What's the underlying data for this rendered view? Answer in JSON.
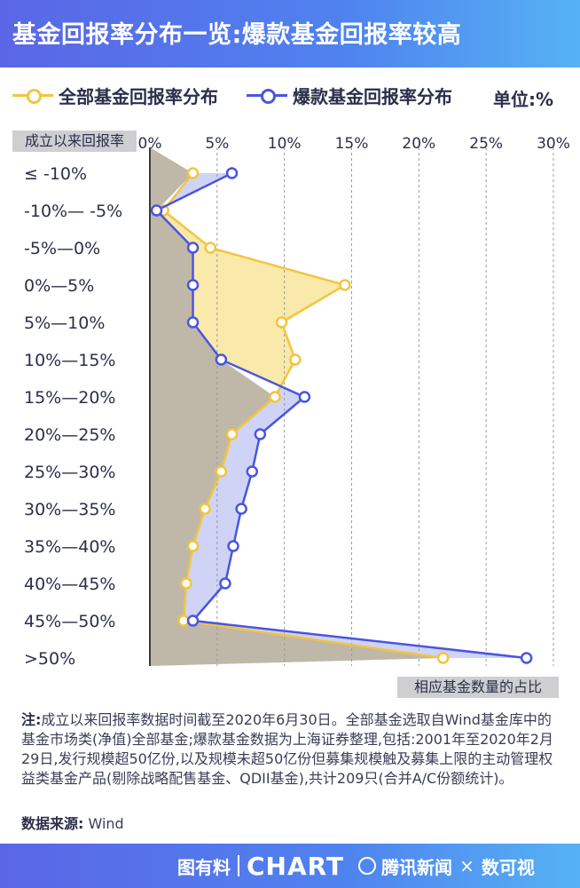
{
  "header": {
    "title": "基金回报率分布一览:爆款基金回报率较高"
  },
  "legend": {
    "all_funds": "全部基金回报率分布",
    "hot_funds": "爆款基金回报率分布",
    "unit": "单位:%"
  },
  "axes": {
    "y_title": "成立以来回报率",
    "x_title": "相应基金数量的占比"
  },
  "colors": {
    "all_funds_line": "#f2c53d",
    "all_funds_fill": "#f8e59b",
    "hot_funds_line": "#4a55e0",
    "hot_funds_fill": "#c7cbf5",
    "base_fill": "#bfb8a8",
    "header": "#5a66e6"
  },
  "chart_data": {
    "type": "line",
    "orientation": "horizontal",
    "categories": [
      "≤ -10%",
      "-10%— -5%",
      "-5%—0%",
      "0%—5%",
      "5%—10%",
      "10%—15%",
      "15%—20%",
      "20%—25%",
      "25%—30%",
      "30%—35%",
      "35%—40%",
      "40%—45%",
      "45%—50%",
      ">50%"
    ],
    "series": [
      {
        "name": "全部基金回报率分布",
        "values": [
          3.2,
          1.0,
          4.5,
          14.5,
          9.8,
          10.8,
          9.3,
          6.1,
          5.3,
          4.1,
          3.2,
          2.7,
          2.5,
          21.8
        ]
      },
      {
        "name": "爆款基金回报率分布",
        "values": [
          6.1,
          0.5,
          3.2,
          3.2,
          3.2,
          5.3,
          11.5,
          8.2,
          7.6,
          6.8,
          6.2,
          5.6,
          3.2,
          28.0
        ]
      }
    ],
    "x_ticks": [
      "0%",
      "5%",
      "10%",
      "15%",
      "20%",
      "25%",
      "30%"
    ],
    "xlim": [
      0,
      30
    ],
    "grid": true,
    "legend_position": "top"
  },
  "notes": {
    "label": "注:",
    "text": "成立以来回报率数据时间截至2020年6月30日。全部基金选取自Wind基金库中的基金市场类(净值)全部基金;爆款基金数据为上海证券整理,包括:2001年至2020年2月29日,发行规模超50亿份,以及规模未超50亿份但募集规模触及募集上限的主动管理权益类基金产品(剔除战略配售基金、QDII基金),共计209只(合并A/C份额统计)。"
  },
  "source": {
    "label": "数据来源:",
    "text": "Wind"
  },
  "footer": {
    "brand1": "图有料",
    "brand2": "CHART",
    "brand3": "腾讯新闻",
    "brand4": "数可视",
    "x": "×"
  }
}
